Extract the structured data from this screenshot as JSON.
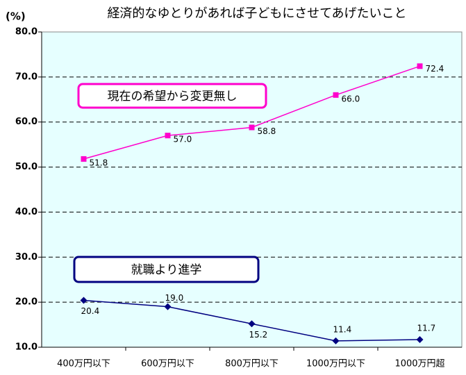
{
  "chart_data": {
    "type": "line",
    "title": "経済的なゆとりがあれば子どもにさせてあげたいこと",
    "y_label": "(%)",
    "categories": [
      "400万円以下",
      "600万円以下",
      "800万円以下",
      "1000万円以下",
      "1000万円超"
    ],
    "series": [
      {
        "name": "現在の希望から変更無し",
        "color": "#ff00cc",
        "values": [
          51.8,
          57.0,
          58.8,
          66.0,
          72.4
        ],
        "value_labels": [
          "51.8",
          "57.0",
          "58.8",
          "66.0",
          "72.4"
        ]
      },
      {
        "name": "就職より進学",
        "color": "#000080",
        "values": [
          20.4,
          19.0,
          15.2,
          11.4,
          11.7
        ],
        "value_labels": [
          "20.4",
          "19.0",
          "15.2",
          "11.4",
          "11.7"
        ]
      }
    ],
    "ylim": [
      10,
      80
    ],
    "yticks": [
      {
        "value": 10,
        "label": "10.0"
      },
      {
        "value": 20,
        "label": "20.0"
      },
      {
        "value": 30,
        "label": "30.0"
      },
      {
        "value": 40,
        "label": "40.0"
      },
      {
        "value": 50,
        "label": "50.0"
      },
      {
        "value": 60,
        "label": "60.0"
      },
      {
        "value": 70,
        "label": "70.0"
      },
      {
        "value": 80,
        "label": "80.0"
      }
    ],
    "grid": true,
    "background": "#e6ffff"
  }
}
